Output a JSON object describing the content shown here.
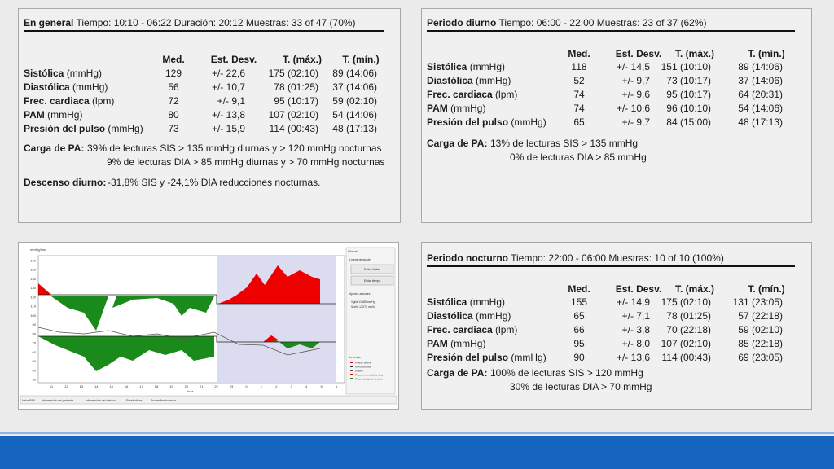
{
  "panels": [
    {
      "title": "En general",
      "info": "Tiempo: 10:10 - 06:22 Duración: 20:12 Muestras: 33 of 47 (70%)",
      "columns": [
        "Med.",
        "Est. Desv.",
        "T. (máx.)",
        "T. (mín.)"
      ],
      "rows": [
        {
          "label": "Sistólica",
          "unit": "(mmHg)",
          "cells": [
            "129",
            "+/- 22,6",
            "175 (02:10)",
            "89 (14:06)"
          ]
        },
        {
          "label": "Diastólica",
          "unit": "(mmHg)",
          "cells": [
            "56",
            "+/- 10,7",
            "78 (01:25)",
            "37 (14:06)"
          ]
        },
        {
          "label": "Frec. cardiaca",
          "unit": "(lpm)",
          "cells": [
            "72",
            "+/- 9,1",
            "95 (10:17)",
            "59 (02:10)"
          ]
        },
        {
          "label": "PAM",
          "unit": "(mmHg)",
          "cells": [
            "80",
            "+/- 13,8",
            "107 (02:10)",
            "54 (14:06)"
          ]
        },
        {
          "label": "Presión del pulso",
          "unit": "(mmHg)",
          "cells": [
            "73",
            "+/- 15,9",
            "114 (00:43)",
            "48 (17:13)"
          ]
        }
      ],
      "carga_label": "Carga de PA:",
      "carga": [
        "39% de lecturas SIS > 135 mmHg diurnas y > 120 mmHg nocturnas",
        "9% de lecturas DIA > 85 mmHg diurnas y > 70 mmHg nocturnas"
      ],
      "descenso_label": "Descenso diurno:",
      "descenso": "-31,8% SIS y -24,1% DIA reducciones nocturnas."
    },
    {
      "title": "Periodo diurno",
      "info": "Tiempo: 06:00 - 22:00 Muestras: 23 of 37 (62%)",
      "columns": [
        "Med.",
        "Est. Desv.",
        "T. (máx.)",
        "T. (mín.)"
      ],
      "rows": [
        {
          "label": "Sistólica",
          "unit": "(mmHg)",
          "cells": [
            "118",
            "+/- 14,5",
            "151 (10:10)",
            "89 (14:06)"
          ]
        },
        {
          "label": "Diastólica",
          "unit": "(mmHg)",
          "cells": [
            "52",
            "+/- 9,7",
            "73 (10:17)",
            "37 (14:06)"
          ]
        },
        {
          "label": "Frec. cardiaca",
          "unit": "(lpm)",
          "cells": [
            "74",
            "+/- 9,6",
            "95 (10:17)",
            "64 (20:31)"
          ]
        },
        {
          "label": "PAM",
          "unit": "(mmHg)",
          "cells": [
            "74",
            "+/- 10,6",
            "96 (10:10)",
            "54 (14:06)"
          ]
        },
        {
          "label": "Presión del pulso",
          "unit": "(mmHg)",
          "cells": [
            "65",
            "+/- 9,7",
            "84 (15:00)",
            "48 (17:13)"
          ]
        }
      ],
      "carga_label": "Carga de PA:",
      "carga": [
        "13% de lecturas SIS > 135 mmHg",
        "0% de lecturas DIA > 85 mmHg"
      ]
    },
    {
      "title": "Periodo nocturno",
      "info": "Tiempo: 22:00 - 06:00 Muestras: 10 of 10 (100%)",
      "columns": [
        "Med.",
        "Est. Desv.",
        "T. (máx.)",
        "T. (mín.)"
      ],
      "rows": [
        {
          "label": "Sistólica",
          "unit": "(mmHg)",
          "cells": [
            "155",
            "+/- 14,9",
            "175 (02:10)",
            "131 (23:05)"
          ]
        },
        {
          "label": "Diastólica",
          "unit": "(mmHg)",
          "cells": [
            "65",
            "+/- 7,1",
            "78 (01:25)",
            "57 (22:18)"
          ]
        },
        {
          "label": "Frec. cardiaca",
          "unit": "(lpm)",
          "cells": [
            "66",
            "+/- 3,8",
            "70 (22:18)",
            "59 (02:10)"
          ]
        },
        {
          "label": "PAM",
          "unit": "(mmHg)",
          "cells": [
            "95",
            "+/- 8,0",
            "107 (02:10)",
            "85 (22:18)"
          ]
        },
        {
          "label": "Presión del pulso",
          "unit": "(mmHg)",
          "cells": [
            "90",
            "+/- 13,6",
            "114 (00:43)",
            "69 (23:05)"
          ]
        }
      ],
      "carga_label": "Carga de PA:",
      "carga": [
        "100% de lecturas SIS > 120 mmHg",
        "30% de lecturas DIA > 70 mmHg"
      ]
    }
  ],
  "screenshot": {
    "axis_label": "mmHg/lpm",
    "yticks": [
      "160",
      "150",
      "140",
      "130",
      "120",
      "110",
      "100",
      "90",
      "80",
      "70",
      "60",
      "50",
      "40",
      "30"
    ],
    "xticks": [
      "11",
      "12",
      "13",
      "14",
      "15",
      "16",
      "17",
      "18",
      "19",
      "20",
      "21",
      "22",
      "23",
      "0",
      "1",
      "2",
      "3",
      "4",
      "5",
      "6"
    ],
    "xlabel": "Hora",
    "side_tab": "Global",
    "fit_title": "Líneas de ajuste",
    "buttons": [
      "Editar límites",
      "Editar tiempo"
    ],
    "current_title": "Ajustes actuales",
    "current": [
      "Vigilia 135/85 mmHg",
      "Sueño 120/70 mmHg"
    ],
    "legend_title": "Leyenda",
    "legend": [
      "Presión arterial",
      "Ritmo cardiaco",
      "Umbral",
      "PA por encima del umbral",
      "PA por debajo del umbral"
    ],
    "tabs": [
      "Valor PSA",
      "Información del paciente",
      "Información del médico",
      "Estadísticas",
      "Promedios horarios"
    ]
  }
}
